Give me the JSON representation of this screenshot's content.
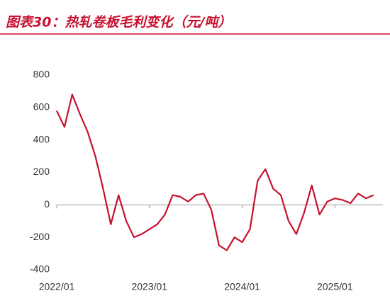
{
  "chart_data": {
    "type": "line",
    "title": "图表30：热轧卷板毛利变化（元/吨）",
    "x": [
      "2022/01",
      "2022/02",
      "2022/03",
      "2022/04",
      "2022/05",
      "2022/06",
      "2022/07",
      "2022/08",
      "2022/09",
      "2022/10",
      "2022/11",
      "2022/12",
      "2023/01",
      "2023/02",
      "2023/03",
      "2023/04",
      "2023/05",
      "2023/06",
      "2023/07",
      "2023/08",
      "2023/09",
      "2023/10",
      "2023/11",
      "2023/12",
      "2024/01",
      "2024/02",
      "2024/03",
      "2024/04",
      "2024/05",
      "2024/06",
      "2024/07",
      "2024/08",
      "2024/09",
      "2024/10",
      "2024/11",
      "2024/12",
      "2025/01",
      "2025/02",
      "2025/03",
      "2025/04",
      "2025/05",
      "2025/06"
    ],
    "series": [
      {
        "color": "#c8102e",
        "values": [
          580,
          480,
          680,
          560,
          450,
          300,
          100,
          -120,
          60,
          -100,
          -200,
          -180,
          -150,
          -120,
          -60,
          60,
          50,
          20,
          60,
          70,
          -30,
          -250,
          -280,
          -200,
          -230,
          -150,
          150,
          220,
          100,
          60,
          -100,
          -180,
          -50,
          120,
          -60,
          20,
          40,
          30,
          10,
          70,
          40,
          60
        ]
      }
    ],
    "ylim": [
      -400,
      800
    ],
    "yticks": [
      -400,
      -200,
      0,
      200,
      400,
      600,
      800
    ],
    "xticks": [
      "2022/01",
      "2023/01",
      "2024/01",
      "2025/01"
    ]
  }
}
